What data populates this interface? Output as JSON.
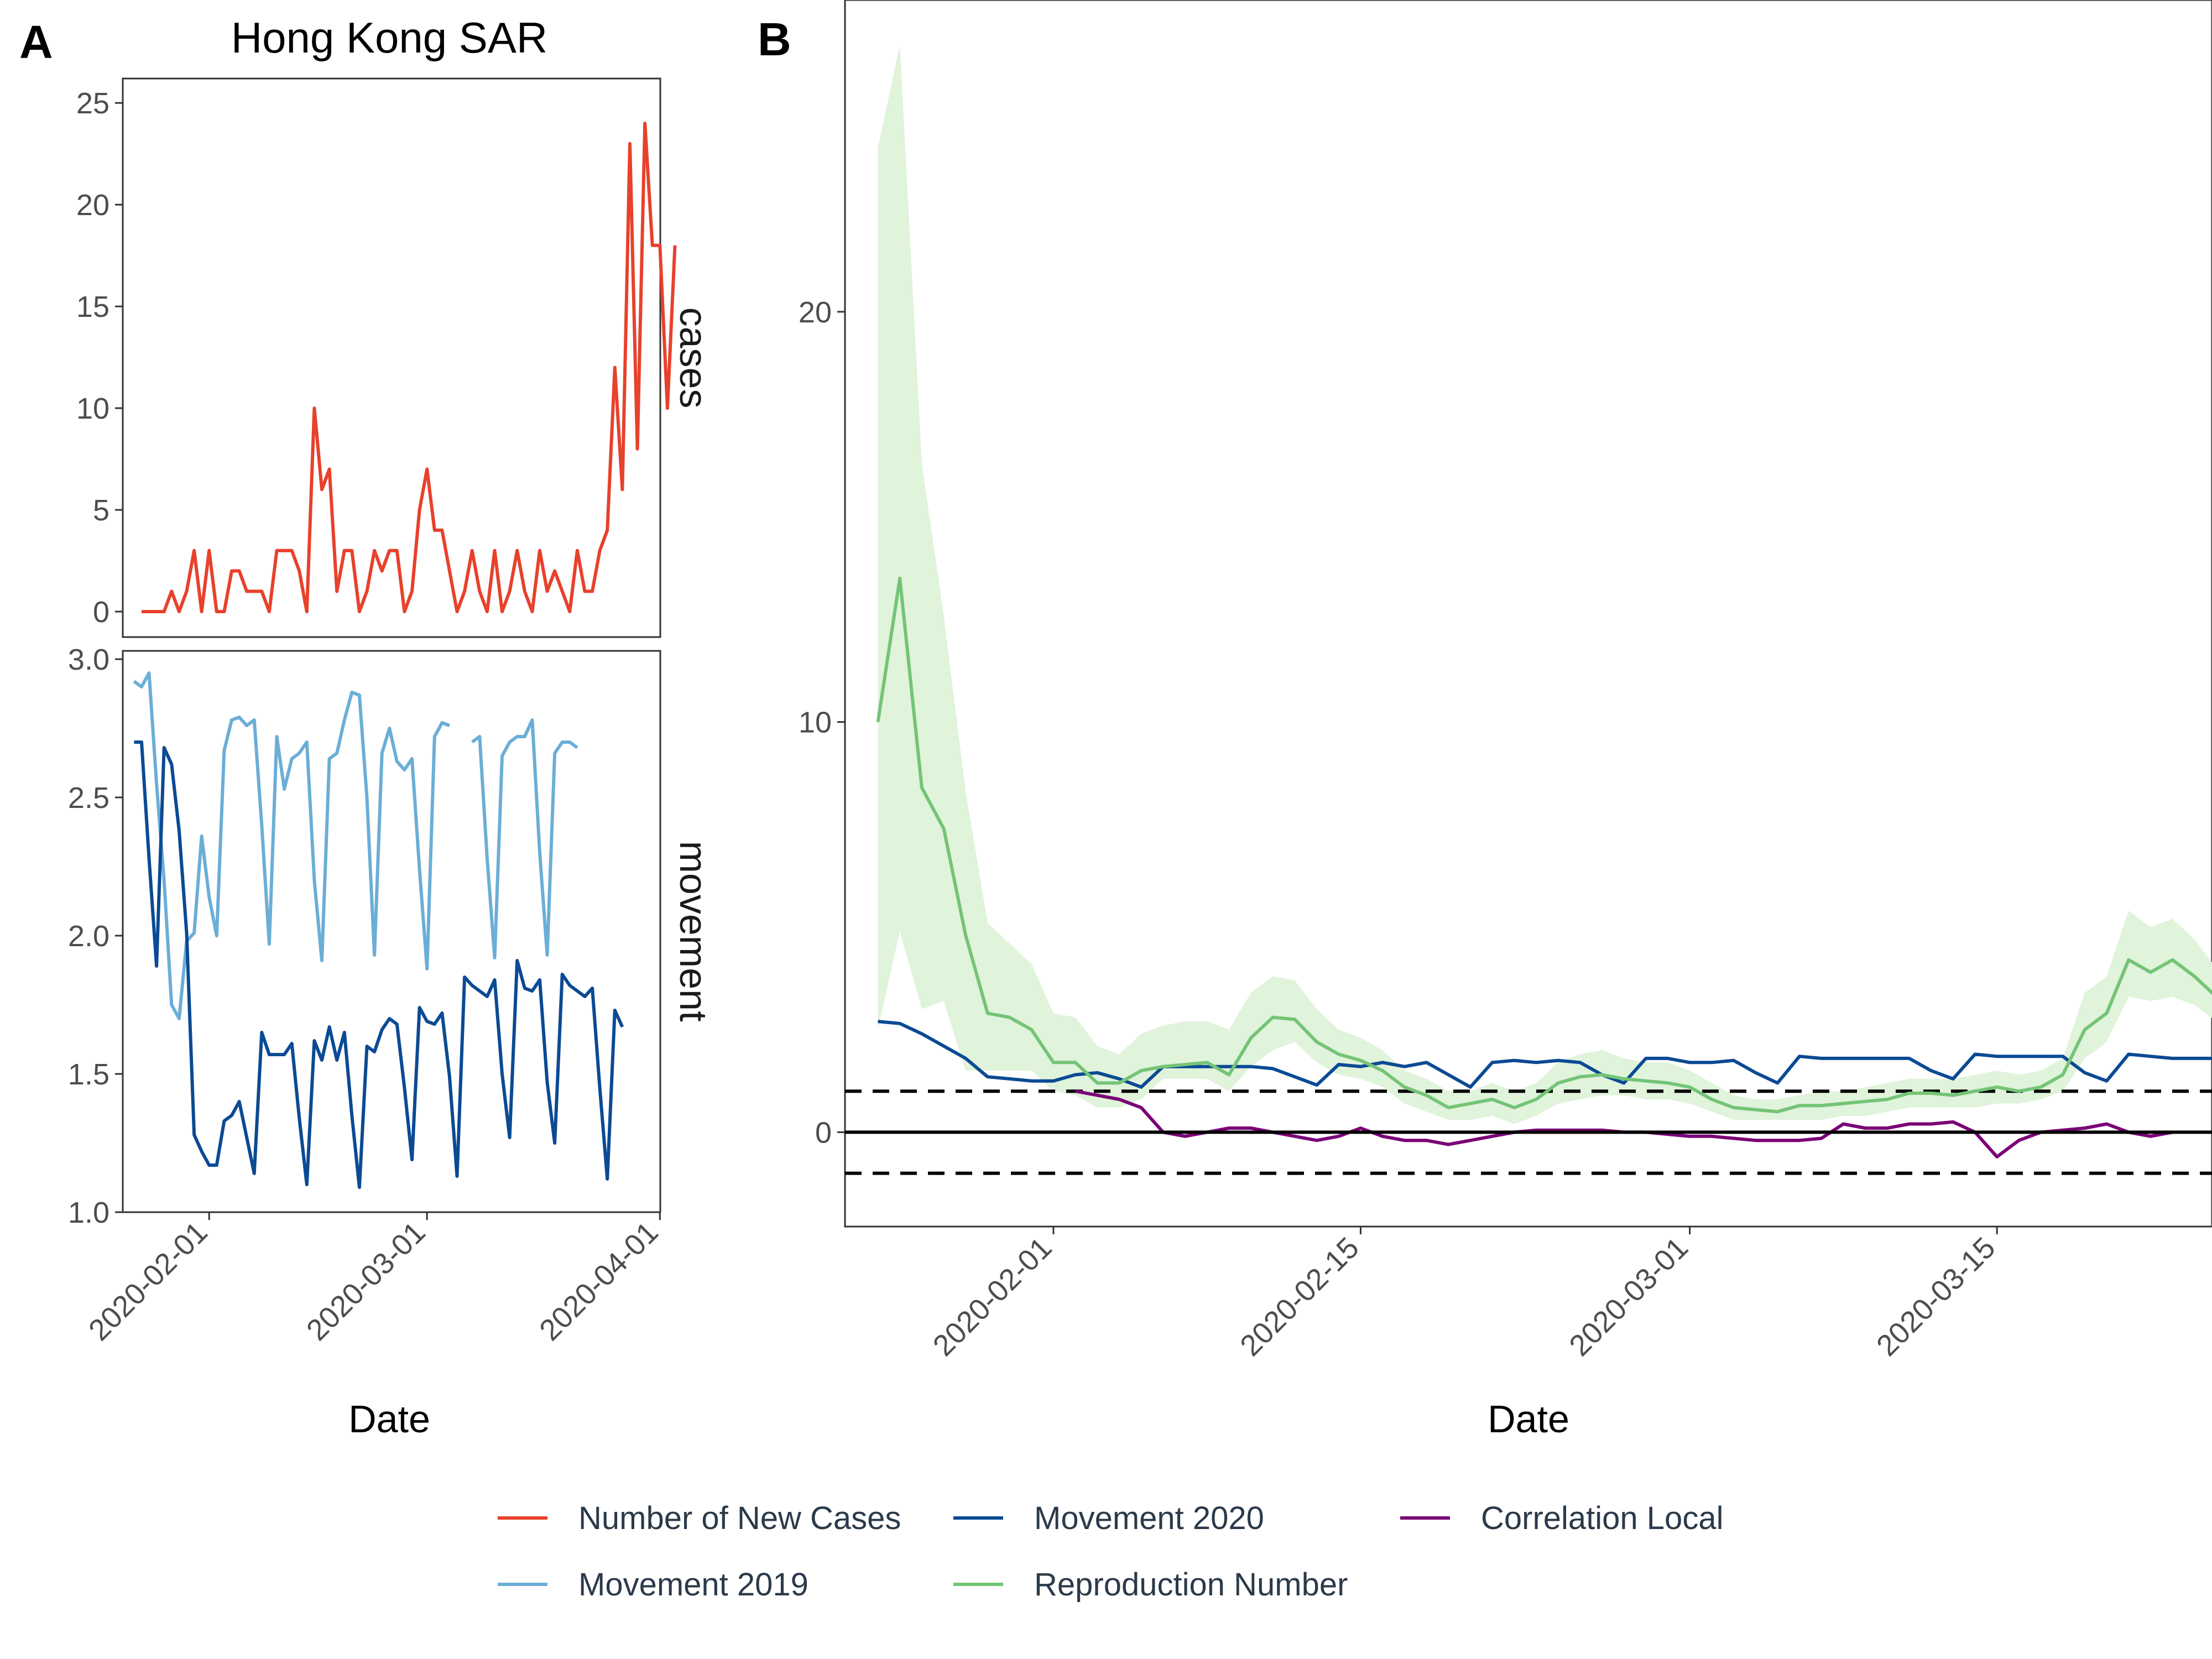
{
  "panel_labels": [
    "A",
    "B"
  ],
  "colors": {
    "new_cases": "#e8412c",
    "movement_2019": "#6baed6",
    "movement_2020": "#0b4a94",
    "reproduction": "#74c476",
    "reproduction_band": "#e0f3db",
    "correlation": "#7a0177"
  },
  "legend": {
    "items": [
      {
        "label": "Number of New Cases",
        "color": "#e8412c"
      },
      {
        "label": "Movement 2020",
        "color": "#0b4a94"
      },
      {
        "label": "Correlation Local",
        "color": "#7a0177"
      },
      {
        "label": "Movement 2019",
        "color": "#6baed6"
      },
      {
        "label": "Reproduction Number",
        "color": "#74c476"
      }
    ]
  },
  "chart_data": [
    {
      "panel": "A",
      "type": "line",
      "title": "Hong Kong SAR",
      "xlabel": "Date",
      "x_ticks": [
        "2020-02-01",
        "2020-03-01",
        "2020-04-01"
      ],
      "facets": [
        {
          "strip": "cases",
          "ylim": [
            0,
            25
          ],
          "y_ticks": [
            "0",
            "5",
            "10",
            "15",
            "20",
            "25"
          ],
          "series": [
            {
              "name": "Number of New Cases",
              "x_start": "2020-01-23",
              "values": [
                0,
                0,
                0,
                0,
                1,
                0,
                1,
                3,
                0,
                3,
                0,
                0,
                2,
                2,
                1,
                1,
                1,
                0,
                3,
                3,
                3,
                2,
                0,
                10,
                6,
                7,
                1,
                3,
                3,
                0,
                1,
                3,
                2,
                3,
                3,
                0,
                1,
                5,
                7,
                4,
                4,
                2,
                0,
                1,
                3,
                1,
                0,
                3,
                0,
                1,
                3,
                1,
                0,
                3,
                1,
                2,
                1,
                0,
                3,
                1,
                1,
                3,
                4,
                12,
                6,
                23,
                8,
                24,
                18,
                18,
                10,
                18
              ]
            }
          ]
        },
        {
          "strip": "movement",
          "ylim": [
            1.0,
            3.0
          ],
          "y_ticks": [
            "1.0",
            "1.5",
            "2.0",
            "2.5",
            "3.0"
          ],
          "series": [
            {
              "name": "Movement 2019",
              "x_start": "2020-01-22",
              "values": [
                2.92,
                2.9,
                2.95,
                2.55,
                2.2,
                1.75,
                1.7,
                1.98,
                2.01,
                2.36,
                2.14,
                2.0,
                2.67,
                2.78,
                2.79,
                2.76,
                2.78,
                2.4,
                1.97,
                2.72,
                2.53,
                2.64,
                2.66,
                2.7,
                2.2,
                1.91,
                2.64,
                2.66,
                2.78,
                2.88,
                2.87,
                2.5,
                1.93,
                2.66,
                2.75,
                2.63,
                2.6,
                2.64,
                2.24,
                1.88,
                2.72,
                2.77,
                2.76,
                null,
                null,
                2.7,
                2.72,
                2.28,
                1.92,
                2.65,
                2.7,
                2.72,
                2.72,
                2.78,
                2.3,
                1.93,
                2.66,
                2.7,
                2.7,
                2.68
              ]
            },
            {
              "name": "Movement 2020",
              "x_start": "2020-01-22",
              "values": [
                2.7,
                2.7,
                2.28,
                1.89,
                2.68,
                2.62,
                2.38,
                2.01,
                1.28,
                1.22,
                1.17,
                1.17,
                1.33,
                1.35,
                1.4,
                1.27,
                1.14,
                1.65,
                1.57,
                1.57,
                1.57,
                1.61,
                1.34,
                1.1,
                1.62,
                1.55,
                1.67,
                1.55,
                1.65,
                1.35,
                1.09,
                1.6,
                1.58,
                1.66,
                1.7,
                1.68,
                1.45,
                1.19,
                1.74,
                1.69,
                1.68,
                1.72,
                1.49,
                1.13,
                1.85,
                1.82,
                1.8,
                1.78,
                1.84,
                1.5,
                1.27,
                1.91,
                1.81,
                1.8,
                1.84,
                1.47,
                1.25,
                1.86,
                1.82,
                1.8,
                1.78,
                1.81,
                1.45,
                1.12,
                1.73,
                1.67
              ]
            }
          ]
        }
      ]
    },
    {
      "panel": "B",
      "type": "line",
      "xlabel": "Date",
      "x_ticks": [
        "2020-02-01",
        "2020-02-15",
        "2020-03-01",
        "2020-03-15"
      ],
      "y_ticks": [
        "0",
        "10",
        "20"
      ],
      "ylim": [
        -2.3,
        27.6
      ],
      "reference_lines": {
        "solid": 0,
        "dashed": [
          1,
          -1
        ]
      },
      "series": [
        {
          "name": "Reproduction Number",
          "x_start": "2020-01-24",
          "values": [
            10,
            13.5,
            8.4,
            7.4,
            4.8,
            2.9,
            2.8,
            2.5,
            1.7,
            1.7,
            1.2,
            1.2,
            1.5,
            1.6,
            1.65,
            1.7,
            1.4,
            2.3,
            2.8,
            2.75,
            2.2,
            1.9,
            1.75,
            1.5,
            1.1,
            0.9,
            0.6,
            0.7,
            0.8,
            0.6,
            0.8,
            1.2,
            1.35,
            1.4,
            1.3,
            1.25,
            1.2,
            1.1,
            0.8,
            0.6,
            0.55,
            0.5,
            0.65,
            0.65,
            0.7,
            0.75,
            0.8,
            0.95,
            0.95,
            0.9,
            1.0,
            1.1,
            1.0,
            1.1,
            1.4,
            2.5,
            2.9,
            4.2,
            3.9,
            4.2,
            3.8,
            3.3,
            2.6,
            2.3
          ],
          "ci_lower": [
            2.5,
            4.9,
            3.0,
            3.2,
            1.5,
            1.5,
            1.5,
            1.5,
            1.0,
            0.9,
            0.6,
            0.6,
            0.8,
            1.3,
            1.3,
            1.3,
            1.0,
            1.6,
            2.0,
            2.2,
            1.7,
            1.4,
            1.3,
            1.1,
            0.7,
            0.5,
            0.3,
            0.3,
            0.4,
            0.2,
            0.4,
            0.7,
            0.8,
            0.9,
            0.9,
            0.8,
            0.8,
            0.7,
            0.5,
            0.3,
            0.3,
            0.3,
            0.3,
            0.3,
            0.4,
            0.4,
            0.5,
            0.6,
            0.6,
            0.6,
            0.6,
            0.7,
            0.7,
            0.8,
            1.0,
            1.8,
            2.2,
            3.3,
            3.2,
            3.3,
            3.1,
            2.7,
            2.2,
            2.0
          ],
          "ci_upper": [
            24.0,
            26.5,
            16.3,
            12.6,
            8.3,
            5.1,
            4.6,
            4.1,
            2.9,
            2.8,
            2.1,
            1.9,
            2.4,
            2.6,
            2.7,
            2.7,
            2.5,
            3.4,
            3.8,
            3.7,
            3.0,
            2.5,
            2.3,
            2.0,
            1.5,
            1.3,
            1.0,
            1.0,
            1.2,
            1.0,
            1.2,
            1.7,
            1.9,
            2.0,
            1.8,
            1.7,
            1.7,
            1.5,
            1.2,
            0.9,
            0.8,
            0.8,
            0.9,
            1.0,
            1.0,
            1.1,
            1.2,
            1.3,
            1.3,
            1.3,
            1.4,
            1.5,
            1.4,
            1.5,
            1.8,
            3.4,
            3.8,
            5.4,
            5.0,
            5.2,
            4.7,
            4.0,
            3.2,
            2.8
          ]
        },
        {
          "name": "Movement 2020",
          "x_start": "2020-01-24",
          "values": [
            2.7,
            2.65,
            2.4,
            2.1,
            1.8,
            1.35,
            1.3,
            1.25,
            1.25,
            1.4,
            1.45,
            1.3,
            1.1,
            1.6,
            1.6,
            1.6,
            1.6,
            1.6,
            1.55,
            1.35,
            1.15,
            1.65,
            1.6,
            1.7,
            1.6,
            1.7,
            1.4,
            1.1,
            1.7,
            1.75,
            1.7,
            1.75,
            1.7,
            1.4,
            1.2,
            1.8,
            1.8,
            1.7,
            1.7,
            1.75,
            1.45,
            1.2,
            1.85,
            1.8,
            1.8,
            1.8,
            1.8,
            1.8,
            1.5,
            1.3,
            1.9,
            1.85,
            1.85,
            1.85,
            1.85,
            1.45,
            1.25,
            1.9,
            1.85,
            1.8,
            1.8,
            1.8,
            1.4,
            1.1,
            1.7
          ]
        },
        {
          "name": "Correlation Local",
          "x_start": "2020-02-02",
          "values": [
            1.0,
            0.9,
            0.8,
            0.6,
            0.0,
            -0.1,
            0.0,
            0.1,
            0.1,
            0.0,
            -0.1,
            -0.2,
            -0.1,
            0.1,
            -0.1,
            -0.2,
            -0.2,
            -0.3,
            -0.2,
            -0.1,
            0.0,
            0.05,
            0.05,
            0.05,
            0.05,
            0.0,
            0.0,
            -0.05,
            -0.1,
            -0.1,
            -0.15,
            -0.2,
            -0.2,
            -0.2,
            -0.15,
            0.2,
            0.1,
            0.1,
            0.2,
            0.2,
            0.25,
            0.0,
            -0.6,
            -0.2,
            0.0,
            0.05,
            0.1,
            0.2,
            0.0,
            -0.1,
            0.0
          ]
        }
      ]
    }
  ]
}
